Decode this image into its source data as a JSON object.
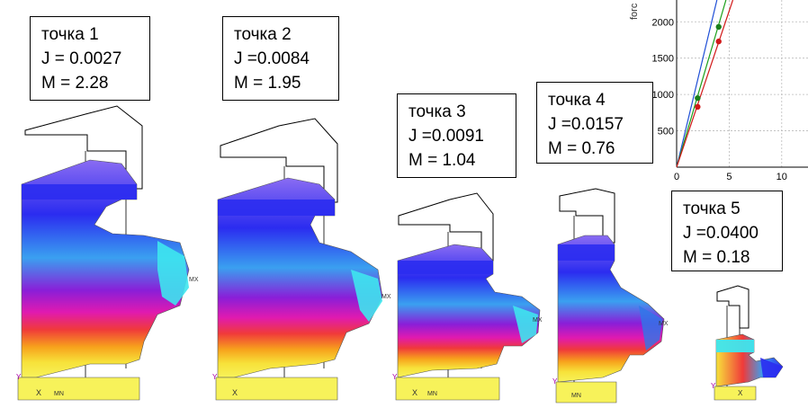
{
  "points": [
    {
      "title": "точка 1",
      "j": "J  = 0.0027",
      "m": "M = 2.28"
    },
    {
      "title": "точка 2",
      "j": "J  =0.0084",
      "m": "M = 1.95"
    },
    {
      "title": "точка 3",
      "j": "J  =0.0091",
      "m": "M = 1.04"
    },
    {
      "title": "точка 4",
      "j": "J  =0.0157",
      "m": "M = 0.76"
    },
    {
      "title": "точка 5",
      "j": "J  =0.0400",
      "m": "M = 0.18"
    }
  ],
  "model_markers": {
    "mx": "MX",
    "mn": "MN",
    "x": "X",
    "y": "Y"
  },
  "chart_data": {
    "type": "scatter",
    "ylabel": "forc",
    "x_ticks": [
      "0",
      "5",
      "10"
    ],
    "y_ticks": [
      "500",
      "1000",
      "1500",
      "2000"
    ],
    "xlim": [
      0,
      12.5
    ],
    "ylim": [
      0,
      2300
    ],
    "series": [
      {
        "color": "#1a7f1a",
        "points": [
          [
            2,
            950
          ],
          [
            4,
            1930
          ]
        ]
      },
      {
        "color": "#d11a1a",
        "points": [
          [
            2,
            830
          ],
          [
            4,
            1730
          ]
        ]
      }
    ],
    "lines": [
      {
        "color": "#1f4fd6",
        "slope": 600
      },
      {
        "color": "#1a9f1a",
        "slope": 490
      },
      {
        "color": "#d11a1a",
        "slope": 430
      }
    ],
    "grid": true
  }
}
